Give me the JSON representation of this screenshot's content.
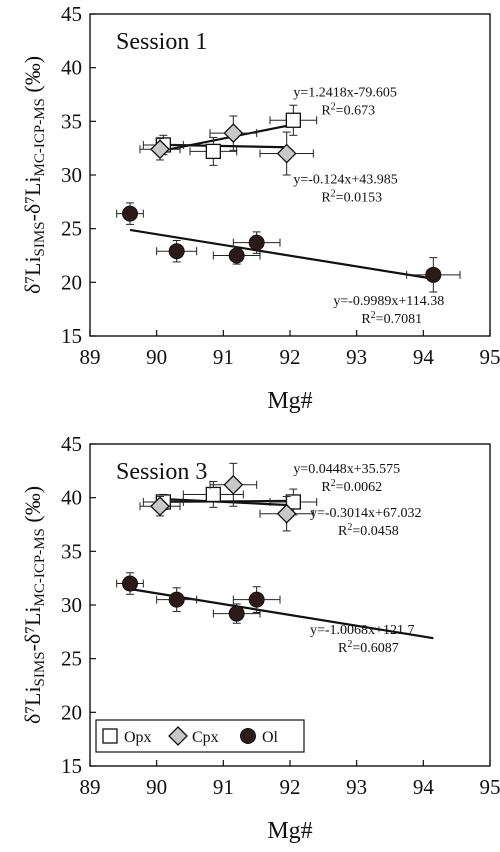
{
  "colors": {
    "opx": "#ffffff",
    "cpx": "#c8c8c8",
    "ol": "#2a1a1a",
    "axis": "#111111"
  },
  "legend": {
    "position": "bottom-left of Session 3",
    "items": [
      {
        "label": "Opx",
        "marker": "square"
      },
      {
        "label": "Cpx",
        "marker": "diamond"
      },
      {
        "label": "Ol",
        "marker": "circle"
      }
    ]
  },
  "chart_data": [
    {
      "type": "scatter",
      "title": "Session 1",
      "xlabel": "Mg#",
      "ylabel_main": "δ⁷Li",
      "ylabel_sub1": "SIMS",
      "ylabel_mid": "-δ⁷Li",
      "ylabel_sub2": "MC-ICP-MS",
      "ylabel_tail": " (‰)",
      "xlim": [
        89,
        95
      ],
      "ylim": [
        15,
        45
      ],
      "xticks": [
        "89",
        "90",
        "91",
        "92",
        "93",
        "94",
        "95"
      ],
      "yticks": [
        "15",
        "20",
        "25",
        "30",
        "35",
        "40",
        "45"
      ],
      "series": [
        {
          "name": "Opx",
          "points": [
            {
              "x": 90.1,
              "y": 32.8,
              "xerr": 0.3,
              "yerr": 0.9
            },
            {
              "x": 90.85,
              "y": 32.2,
              "xerr": 0.35,
              "yerr": 1.3
            },
            {
              "x": 92.05,
              "y": 35.1,
              "xerr": 0.35,
              "yerr": 1.4
            }
          ]
        },
        {
          "name": "Cpx",
          "points": [
            {
              "x": 90.05,
              "y": 32.4,
              "xerr": 0.3,
              "yerr": 1.0
            },
            {
              "x": 91.15,
              "y": 33.9,
              "xerr": 0.35,
              "yerr": 1.6
            },
            {
              "x": 91.95,
              "y": 32.0,
              "xerr": 0.4,
              "yerr": 2.0
            }
          ]
        },
        {
          "name": "Ol",
          "points": [
            {
              "x": 89.6,
              "y": 26.4,
              "xerr": 0.2,
              "yerr": 1.0
            },
            {
              "x": 90.3,
              "y": 22.9,
              "xerr": 0.3,
              "yerr": 1.0
            },
            {
              "x": 91.2,
              "y": 22.5,
              "xerr": 0.35,
              "yerr": 0.8
            },
            {
              "x": 91.5,
              "y": 23.7,
              "xerr": 0.35,
              "yerr": 1.0
            },
            {
              "x": 94.15,
              "y": 20.7,
              "xerr": 0.4,
              "yerr": 1.6
            }
          ]
        }
      ],
      "trendlines": [
        {
          "x1": 90.05,
          "x2": 92.05,
          "slope": 1.2418,
          "intercept": -79.605,
          "equation": "y=1.2418x-79.605",
          "r2_label": "R",
          "r2_value": "=0.673",
          "label_x": 92.05,
          "label_y": 37.3
        },
        {
          "x1": 90.05,
          "x2": 91.95,
          "slope": -0.124,
          "intercept": 43.985,
          "equation": "y=-0.124x+43.985",
          "r2_label": "R",
          "r2_value": "=0.0153",
          "label_x": 92.05,
          "label_y": 29.2
        },
        {
          "x1": 89.6,
          "x2": 94.15,
          "slope": -0.9989,
          "intercept": 114.38,
          "equation": "y=-0.9989x+114.38",
          "r2_label": "R",
          "r2_value": "=0.7081",
          "label_x": 92.65,
          "label_y": 17.9
        }
      ]
    },
    {
      "type": "scatter",
      "title": "Session 3",
      "xlabel": "Mg#",
      "ylabel_main": "δ⁷Li",
      "ylabel_sub1": "SIMS",
      "ylabel_mid": "-δ⁷Li",
      "ylabel_sub2": "MC-ICP-MS",
      "ylabel_tail": " (‰)",
      "xlim": [
        89,
        95
      ],
      "ylim": [
        15,
        45
      ],
      "xticks": [
        "89",
        "90",
        "91",
        "92",
        "93",
        "94",
        "95"
      ],
      "yticks": [
        "15",
        "20",
        "25",
        "30",
        "35",
        "40",
        "45"
      ],
      "series": [
        {
          "name": "Opx",
          "points": [
            {
              "x": 90.1,
              "y": 39.6,
              "xerr": 0.3,
              "yerr": 0.7
            },
            {
              "x": 90.85,
              "y": 40.3,
              "xerr": 0.45,
              "yerr": 1.2
            },
            {
              "x": 92.05,
              "y": 39.6,
              "xerr": 0.35,
              "yerr": 1.2
            }
          ]
        },
        {
          "name": "Cpx",
          "points": [
            {
              "x": 90.05,
              "y": 39.2,
              "xerr": 0.3,
              "yerr": 0.9
            },
            {
              "x": 91.15,
              "y": 41.2,
              "xerr": 0.35,
              "yerr": 2.0
            },
            {
              "x": 91.95,
              "y": 38.5,
              "xerr": 0.4,
              "yerr": 1.6
            }
          ]
        },
        {
          "name": "Ol",
          "points": [
            {
              "x": 89.6,
              "y": 32.0,
              "xerr": 0.2,
              "yerr": 1.0
            },
            {
              "x": 90.3,
              "y": 30.5,
              "xerr": 0.3,
              "yerr": 1.1
            },
            {
              "x": 91.2,
              "y": 29.2,
              "xerr": 0.35,
              "yerr": 0.9
            },
            {
              "x": 91.5,
              "y": 30.5,
              "xerr": 0.35,
              "yerr": 1.2
            }
          ]
        }
      ],
      "trendlines": [
        {
          "x1": 90.1,
          "x2": 92.05,
          "slope": 0.0448,
          "intercept": 35.575,
          "equation": "y=0.0448x+35.575",
          "r2_label": "R",
          "r2_value": "=0.0062",
          "label_x": 92.05,
          "label_y": 42.3
        },
        {
          "x1": 90.05,
          "x2": 91.95,
          "slope": -0.3014,
          "intercept": 67.032,
          "equation": "y=-0.3014x+67.032",
          "r2_label": "R",
          "r2_value": "=0.0458",
          "label_x": 92.3,
          "label_y": 38.2
        },
        {
          "x1": 89.6,
          "x2": 94.15,
          "slope": -1.0068,
          "intercept": 121.7,
          "equation": "y=-1.0068x+121.7",
          "r2_label": "R",
          "r2_value": "=0.6087",
          "label_x": 92.3,
          "label_y": 27.3
        }
      ]
    }
  ]
}
